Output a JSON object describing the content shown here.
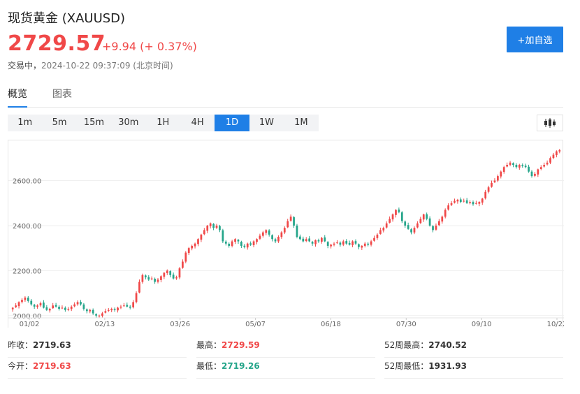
{
  "header": {
    "title": "现货黄金 (XAUUSD)",
    "price": "2729.57",
    "change": "+9.94 (+ 0.37%)",
    "status_label": "交易中，",
    "timestamp": "2024-10-22 09:37:09",
    "timezone": "(北京时间)",
    "add_button": "+加自选"
  },
  "tabs": [
    {
      "label": "概览",
      "active": true
    },
    {
      "label": "图表",
      "active": false
    }
  ],
  "periods": [
    {
      "label": "1m",
      "active": false
    },
    {
      "label": "5m",
      "active": false
    },
    {
      "label": "15m",
      "active": false
    },
    {
      "label": "30m",
      "active": false
    },
    {
      "label": "1H",
      "active": false
    },
    {
      "label": "4H",
      "active": false
    },
    {
      "label": "1D",
      "active": true
    },
    {
      "label": "1W",
      "active": false
    },
    {
      "label": "1M",
      "active": false
    }
  ],
  "chart_type_icon": "candlestick-icon",
  "colors": {
    "up": "#f04848",
    "down": "#25a58a",
    "accent": "#1f7fe6"
  },
  "chart_data": {
    "type": "candlestick",
    "ylim": [
      1990,
      2760
    ],
    "yticks": [
      2000,
      2200,
      2400,
      2600
    ],
    "ytick_labels": [
      "2000.00",
      "2200.00",
      "2400.00",
      "2600.00"
    ],
    "xtick_labels": [
      "01/02",
      "02/13",
      "03/26",
      "05/07",
      "06/18",
      "07/30",
      "09/10",
      "10/22"
    ],
    "close_path": [
      [
        2035,
        2045,
        2060,
        2070,
        2080,
        2065,
        2050,
        2040,
        2045,
        2055,
        2035,
        2025,
        2030,
        2045,
        2040,
        2030,
        2035,
        2025,
        2030,
        2040,
        2050,
        2060,
        2050,
        2030,
        2020,
        2025,
        2010,
        2000
      ],
      [
        2000,
        2010,
        2020,
        2025,
        2030,
        2025,
        2035,
        2040,
        2045,
        2040,
        2035,
        2060,
        2100,
        2150,
        2180,
        2170,
        2160,
        2165,
        2150,
        2160,
        2175,
        2190,
        2200,
        2180,
        2165,
        2170,
        2210,
        2240,
        2280,
        2300,
        2310
      ],
      [
        2320,
        2340,
        2360,
        2380,
        2400,
        2410,
        2390,
        2400,
        2380,
        2330,
        2320,
        2310,
        2330,
        2340,
        2330,
        2310,
        2305,
        2320,
        2315,
        2330,
        2340,
        2355,
        2370,
        2380,
        2360,
        2340,
        2330,
        2350,
        2370,
        2390,
        2420,
        2440,
        2400,
        2350,
        2340,
        2330,
        2340,
        2330,
        2320,
        2335,
        2330,
        2345
      ],
      [
        2330,
        2310,
        2315,
        2320,
        2325,
        2315,
        2330,
        2320,
        2315,
        2330,
        2320,
        2305,
        2310,
        2320,
        2315,
        2330,
        2345,
        2360,
        2380,
        2390,
        2410,
        2430,
        2450,
        2470,
        2460,
        2420,
        2400,
        2385,
        2370,
        2390,
        2410,
        2430,
        2450,
        2430,
        2400,
        2380,
        2400,
        2420,
        2440,
        2470,
        2490,
        2500,
        2510,
        2515,
        2505,
        2510,
        2500,
        2505,
        2495,
        2500,
        2505,
        2520,
        2550,
        2570,
        2590,
        2600,
        2620,
        2640,
        2660,
        2670,
        2680,
        2670,
        2660,
        2670,
        2665,
        2660,
        2640,
        2620,
        2630,
        2650,
        2660,
        2670,
        2680,
        2700,
        2715,
        2730,
        2735
      ]
    ]
  },
  "stats": [
    {
      "label": "昨收：",
      "value": "2719.63",
      "tone": "neutral"
    },
    {
      "label": "最高：",
      "value": "2729.59",
      "tone": "up"
    },
    {
      "label": "52周最高：",
      "value": "2740.52",
      "tone": "neutral"
    },
    {
      "label": "今开：",
      "value": "2719.63",
      "tone": "up"
    },
    {
      "label": "最低：",
      "value": "2719.26",
      "tone": "down"
    },
    {
      "label": "52周最低：",
      "value": "1931.93",
      "tone": "neutral"
    }
  ]
}
